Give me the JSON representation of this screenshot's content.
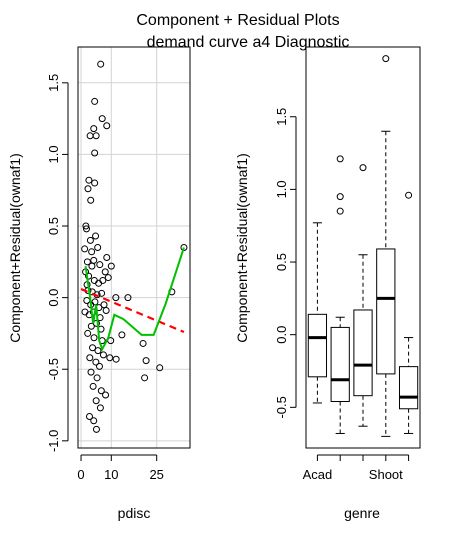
{
  "figure": {
    "title": "Component + Residual Plots",
    "subtitle": "demand curve a4 Diagnostic"
  },
  "chart_data": [
    {
      "type": "scatter",
      "xlabel": "pdisc",
      "ylabel": "Component+Residual(ownaf1)",
      "xlim": [
        -1,
        36
      ],
      "ylim": [
        -1.05,
        1.75
      ],
      "xticks": [
        0,
        10,
        25
      ],
      "yticks": [
        -1.0,
        -0.5,
        0.0,
        0.5,
        1.0,
        1.5
      ],
      "grid": true,
      "points": [
        [
          6.5,
          1.63
        ],
        [
          4.5,
          1.37
        ],
        [
          7,
          1.25
        ],
        [
          8.5,
          1.2
        ],
        [
          3,
          1.13
        ],
        [
          4.2,
          1.18
        ],
        [
          5,
          1.13
        ],
        [
          4.5,
          1.01
        ],
        [
          2.6,
          0.82
        ],
        [
          4.5,
          0.8
        ],
        [
          2.3,
          0.76
        ],
        [
          3.2,
          0.68
        ],
        [
          1.6,
          0.5
        ],
        [
          1.8,
          0.48
        ],
        [
          3.1,
          0.4
        ],
        [
          4.8,
          0.43
        ],
        [
          3.5,
          0.32
        ],
        [
          5.5,
          0.35
        ],
        [
          8.5,
          0.28
        ],
        [
          4.2,
          0.26
        ],
        [
          2.1,
          0.25
        ],
        [
          3.6,
          0.22
        ],
        [
          6.2,
          0.23
        ],
        [
          8,
          0.18
        ],
        [
          10,
          0.22
        ],
        [
          2.5,
          0.15
        ],
        [
          4.4,
          0.12
        ],
        [
          5.8,
          0.1
        ],
        [
          7.2,
          0.12
        ],
        [
          9,
          0.14
        ],
        [
          2.3,
          0.05
        ],
        [
          3.7,
          0.04
        ],
        [
          5.3,
          0.02
        ],
        [
          6.8,
          0.03
        ],
        [
          1.9,
          -0.02
        ],
        [
          3.2,
          -0.05
        ],
        [
          4.6,
          -0.03
        ],
        [
          5.9,
          -0.07
        ],
        [
          7.6,
          -0.05
        ],
        [
          2.7,
          -0.12
        ],
        [
          4.1,
          -0.1
        ],
        [
          6.3,
          -0.14
        ],
        [
          8.3,
          -0.09
        ],
        [
          3.4,
          -0.2
        ],
        [
          5.1,
          -0.18
        ],
        [
          6.6,
          -0.22
        ],
        [
          2.2,
          -0.25
        ],
        [
          4.3,
          -0.28
        ],
        [
          7,
          -0.3
        ],
        [
          3.8,
          -0.35
        ],
        [
          5.6,
          -0.37
        ],
        [
          2.9,
          -0.42
        ],
        [
          4.9,
          -0.45
        ],
        [
          6.1,
          -0.48
        ],
        [
          7.4,
          -0.4
        ],
        [
          9.5,
          -0.42
        ],
        [
          3.3,
          -0.52
        ],
        [
          5.3,
          -0.56
        ],
        [
          4,
          -0.62
        ],
        [
          6.7,
          -0.65
        ],
        [
          8.1,
          -0.68
        ],
        [
          5,
          -0.72
        ],
        [
          6.4,
          -0.77
        ],
        [
          2.8,
          -0.83
        ],
        [
          4.2,
          -0.86
        ],
        [
          5.1,
          -0.92
        ],
        [
          1.2,
          0.34
        ],
        [
          1.5,
          0.18
        ],
        [
          2.0,
          0.09
        ],
        [
          1.3,
          -0.1
        ],
        [
          9.8,
          -0.3
        ],
        [
          11.5,
          0.0
        ],
        [
          15.5,
          0.0
        ],
        [
          20.5,
          -0.32
        ],
        [
          21.5,
          -0.44
        ],
        [
          21,
          -0.56
        ],
        [
          26,
          -0.49
        ],
        [
          30,
          0.04
        ],
        [
          34,
          0.35
        ],
        [
          13.5,
          -0.26
        ],
        [
          11.6,
          -0.43
        ]
      ],
      "fit_line": {
        "x": [
          0,
          34
        ],
        "y": [
          0.06,
          -0.24
        ],
        "color": "#ff0000"
      },
      "smooth": {
        "x": [
          1.5,
          3,
          4,
          5,
          6,
          7,
          9,
          11,
          14,
          20,
          24,
          28,
          34
        ],
        "y": [
          0.22,
          0.0,
          -0.18,
          -0.05,
          -0.3,
          -0.36,
          -0.28,
          -0.12,
          -0.15,
          -0.26,
          -0.26,
          -0.04,
          0.35
        ],
        "color": "#00c000"
      }
    },
    {
      "type": "box",
      "xlabel": "genre",
      "ylabel": "Component+Residual(ownaf1)",
      "ylim": [
        -0.78,
        1.98
      ],
      "yticks": [
        -0.5,
        0.0,
        0.5,
        1.0,
        1.5
      ],
      "category_labels": [
        "Acad",
        "Shoot"
      ],
      "boxes": [
        {
          "whisker_low": -0.47,
          "q1": -0.29,
          "median": -0.02,
          "q3": 0.14,
          "whisker_high": 0.77,
          "outliers": []
        },
        {
          "whisker_low": -0.68,
          "q1": -0.46,
          "median": -0.31,
          "q3": 0.05,
          "whisker_high": 0.12,
          "outliers": [
            1.21,
            0.95,
            0.85
          ]
        },
        {
          "whisker_low": -0.63,
          "q1": -0.42,
          "median": -0.21,
          "q3": 0.17,
          "whisker_high": 0.55,
          "outliers": [
            1.15
          ]
        },
        {
          "whisker_low": -0.7,
          "q1": -0.27,
          "median": 0.25,
          "q3": 0.59,
          "whisker_high": 1.4,
          "outliers": [
            1.9
          ]
        },
        {
          "whisker_low": -0.68,
          "q1": -0.51,
          "median": -0.43,
          "q3": -0.22,
          "whisker_high": -0.02,
          "outliers": [
            0.96
          ]
        }
      ]
    }
  ]
}
